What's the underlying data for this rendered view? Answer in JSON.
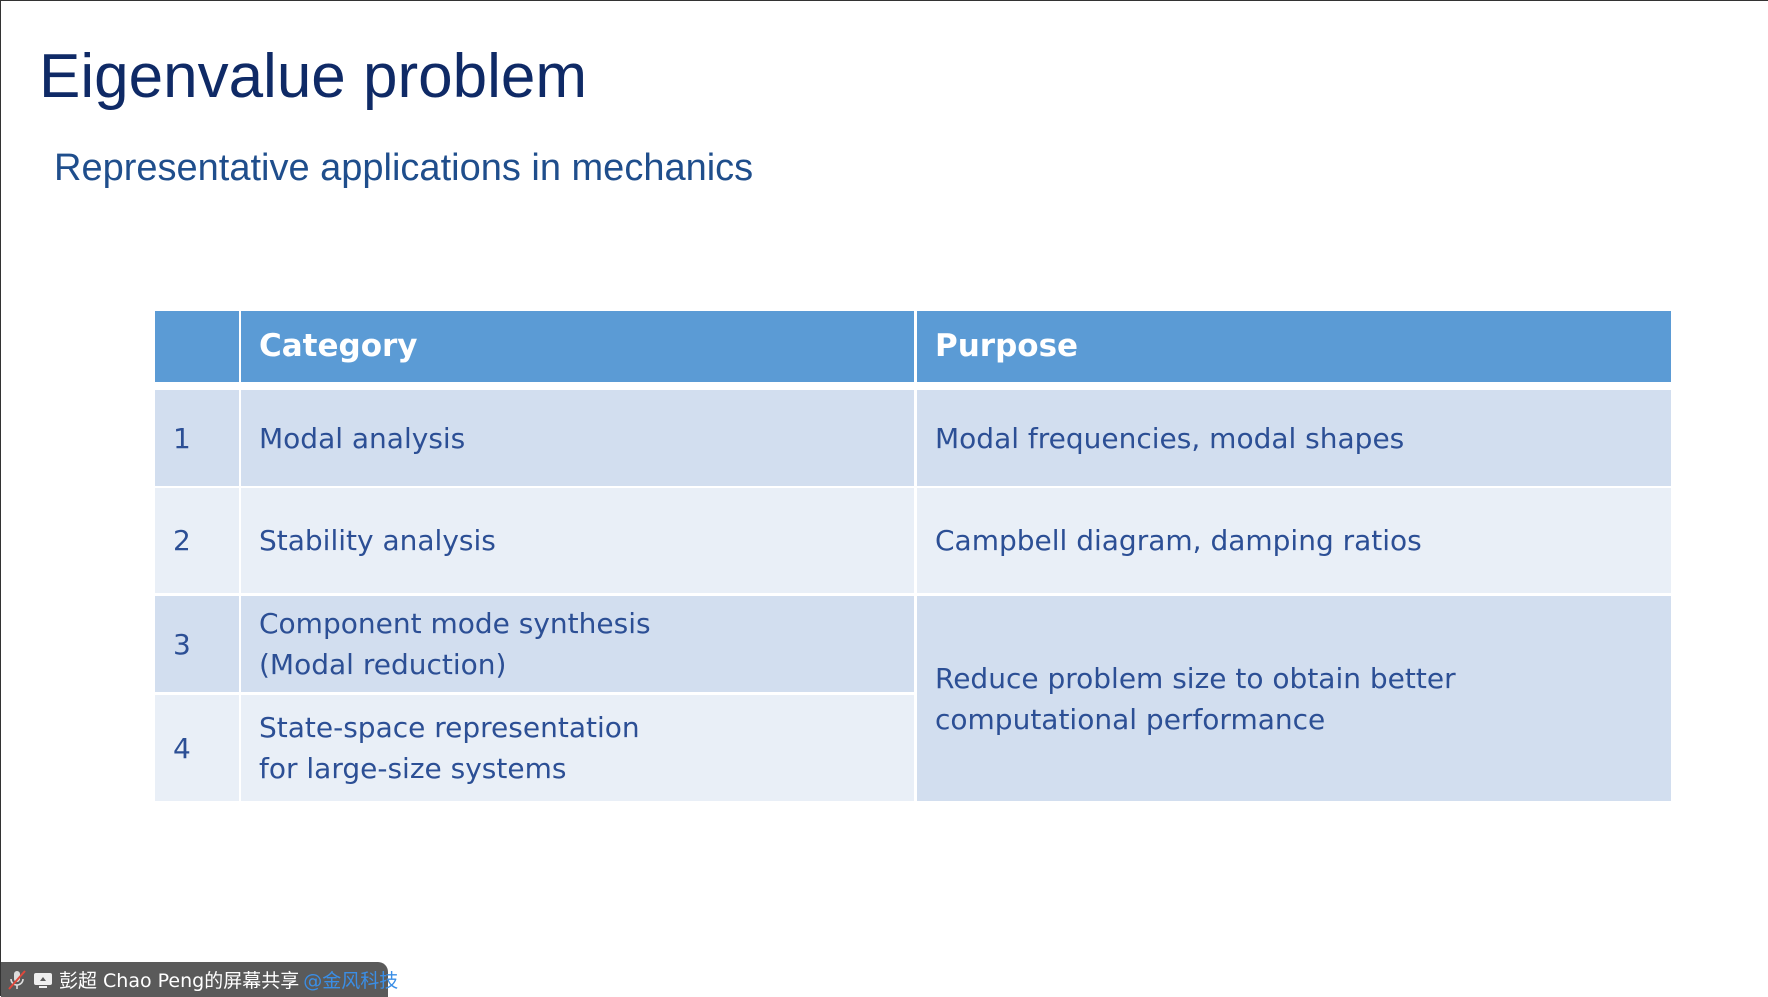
{
  "slide": {
    "title": "Eigenvalue problem",
    "subtitle": "Representative applications in mechanics"
  },
  "table": {
    "headers": [
      "",
      "Category",
      "Purpose"
    ],
    "rows": [
      {
        "num": "1",
        "category": [
          "Modal analysis"
        ],
        "purpose": [
          "Modal frequencies, modal shapes"
        ]
      },
      {
        "num": "2",
        "category": [
          "Stability analysis"
        ],
        "purpose": [
          "Campbell diagram, damping ratios"
        ]
      },
      {
        "num": "3",
        "category": [
          "Component mode synthesis",
          "(Modal reduction)"
        ]
      },
      {
        "num": "4",
        "category": [
          "State-space representation",
          "for large-size systems"
        ]
      }
    ],
    "merged_purpose_3_4": [
      "Reduce problem size to obtain better",
      "computational performance"
    ]
  },
  "share_bar": {
    "mic_icon": "microphone-muted-icon",
    "screen_icon": "screen-share-icon",
    "label": "彭超 Chao Peng的屏幕共享",
    "org": "@金风科技"
  },
  "colors": {
    "header": "#5b9bd5",
    "row_odd": "#d2deef",
    "row_even": "#e9eff7",
    "text": "#2c4f95"
  }
}
